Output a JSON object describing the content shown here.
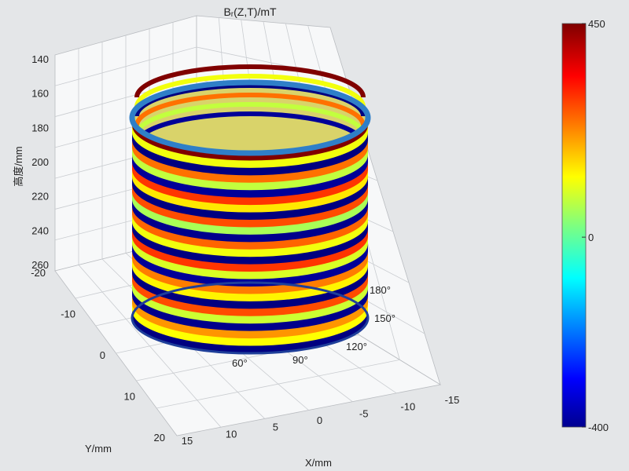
{
  "chart_data": {
    "type": "surface3d",
    "title": "Bᵣ(Z,T)/mT",
    "xlabel": "X/mm",
    "ylabel": "Y/mm",
    "zlabel": "高度/mm",
    "x_ticks": [
      "15",
      "10",
      "5",
      "0",
      "-5",
      "-10",
      "-15"
    ],
    "y_ticks": [
      "-20",
      "-10",
      "0",
      "10",
      "20"
    ],
    "z_ticks": [
      "140",
      "160",
      "180",
      "200",
      "220",
      "240",
      "260"
    ],
    "angle_labels": [
      "60°",
      "90°",
      "120°",
      "150°",
      "180°"
    ],
    "colorbar": {
      "min": -400,
      "max": 450,
      "ticks": [
        "450",
        "0",
        "-400"
      ],
      "colormap": "jet"
    },
    "cylinder": {
      "bands": [
        450,
        120,
        -400,
        250,
        80,
        -380,
        300,
        150,
        -400,
        280,
        60,
        -390,
        260,
        120,
        -400,
        300,
        100,
        -380,
        240,
        140,
        -400,
        280,
        90,
        -390,
        220,
        130,
        -400
      ]
    }
  }
}
